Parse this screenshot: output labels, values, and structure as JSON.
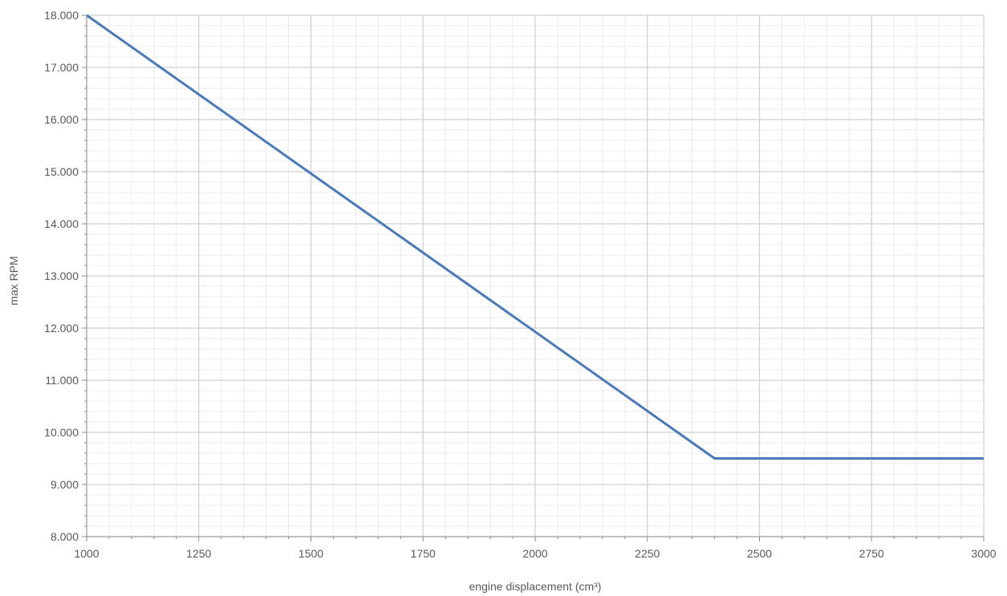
{
  "chart_data": {
    "type": "line",
    "title": "",
    "xlabel": "engine displacement (cm³)",
    "ylabel": "max RPM",
    "xlim": [
      1000,
      3000
    ],
    "ylim": [
      8000,
      18000
    ],
    "x_ticks": [
      1000,
      1250,
      1500,
      1750,
      2000,
      2250,
      2500,
      2750,
      3000
    ],
    "x_tick_labels": [
      "1000",
      "1250",
      "1500",
      "1750",
      "2000",
      "2250",
      "2500",
      "2750",
      "3000"
    ],
    "y_ticks": [
      8000,
      9000,
      10000,
      11000,
      12000,
      13000,
      14000,
      15000,
      16000,
      17000,
      18000
    ],
    "y_tick_labels": [
      "8.000",
      "9.000",
      "10.000",
      "11.000",
      "12.000",
      "13.000",
      "14.000",
      "15.000",
      "16.000",
      "17.000",
      "18.000"
    ],
    "grid": true,
    "minor_grid": true,
    "legend": "none",
    "series": [
      {
        "color": "#4a7ab5",
        "x": [
          1000,
          2400,
          3000
        ],
        "y": [
          18000,
          9500,
          9500
        ]
      }
    ]
  }
}
